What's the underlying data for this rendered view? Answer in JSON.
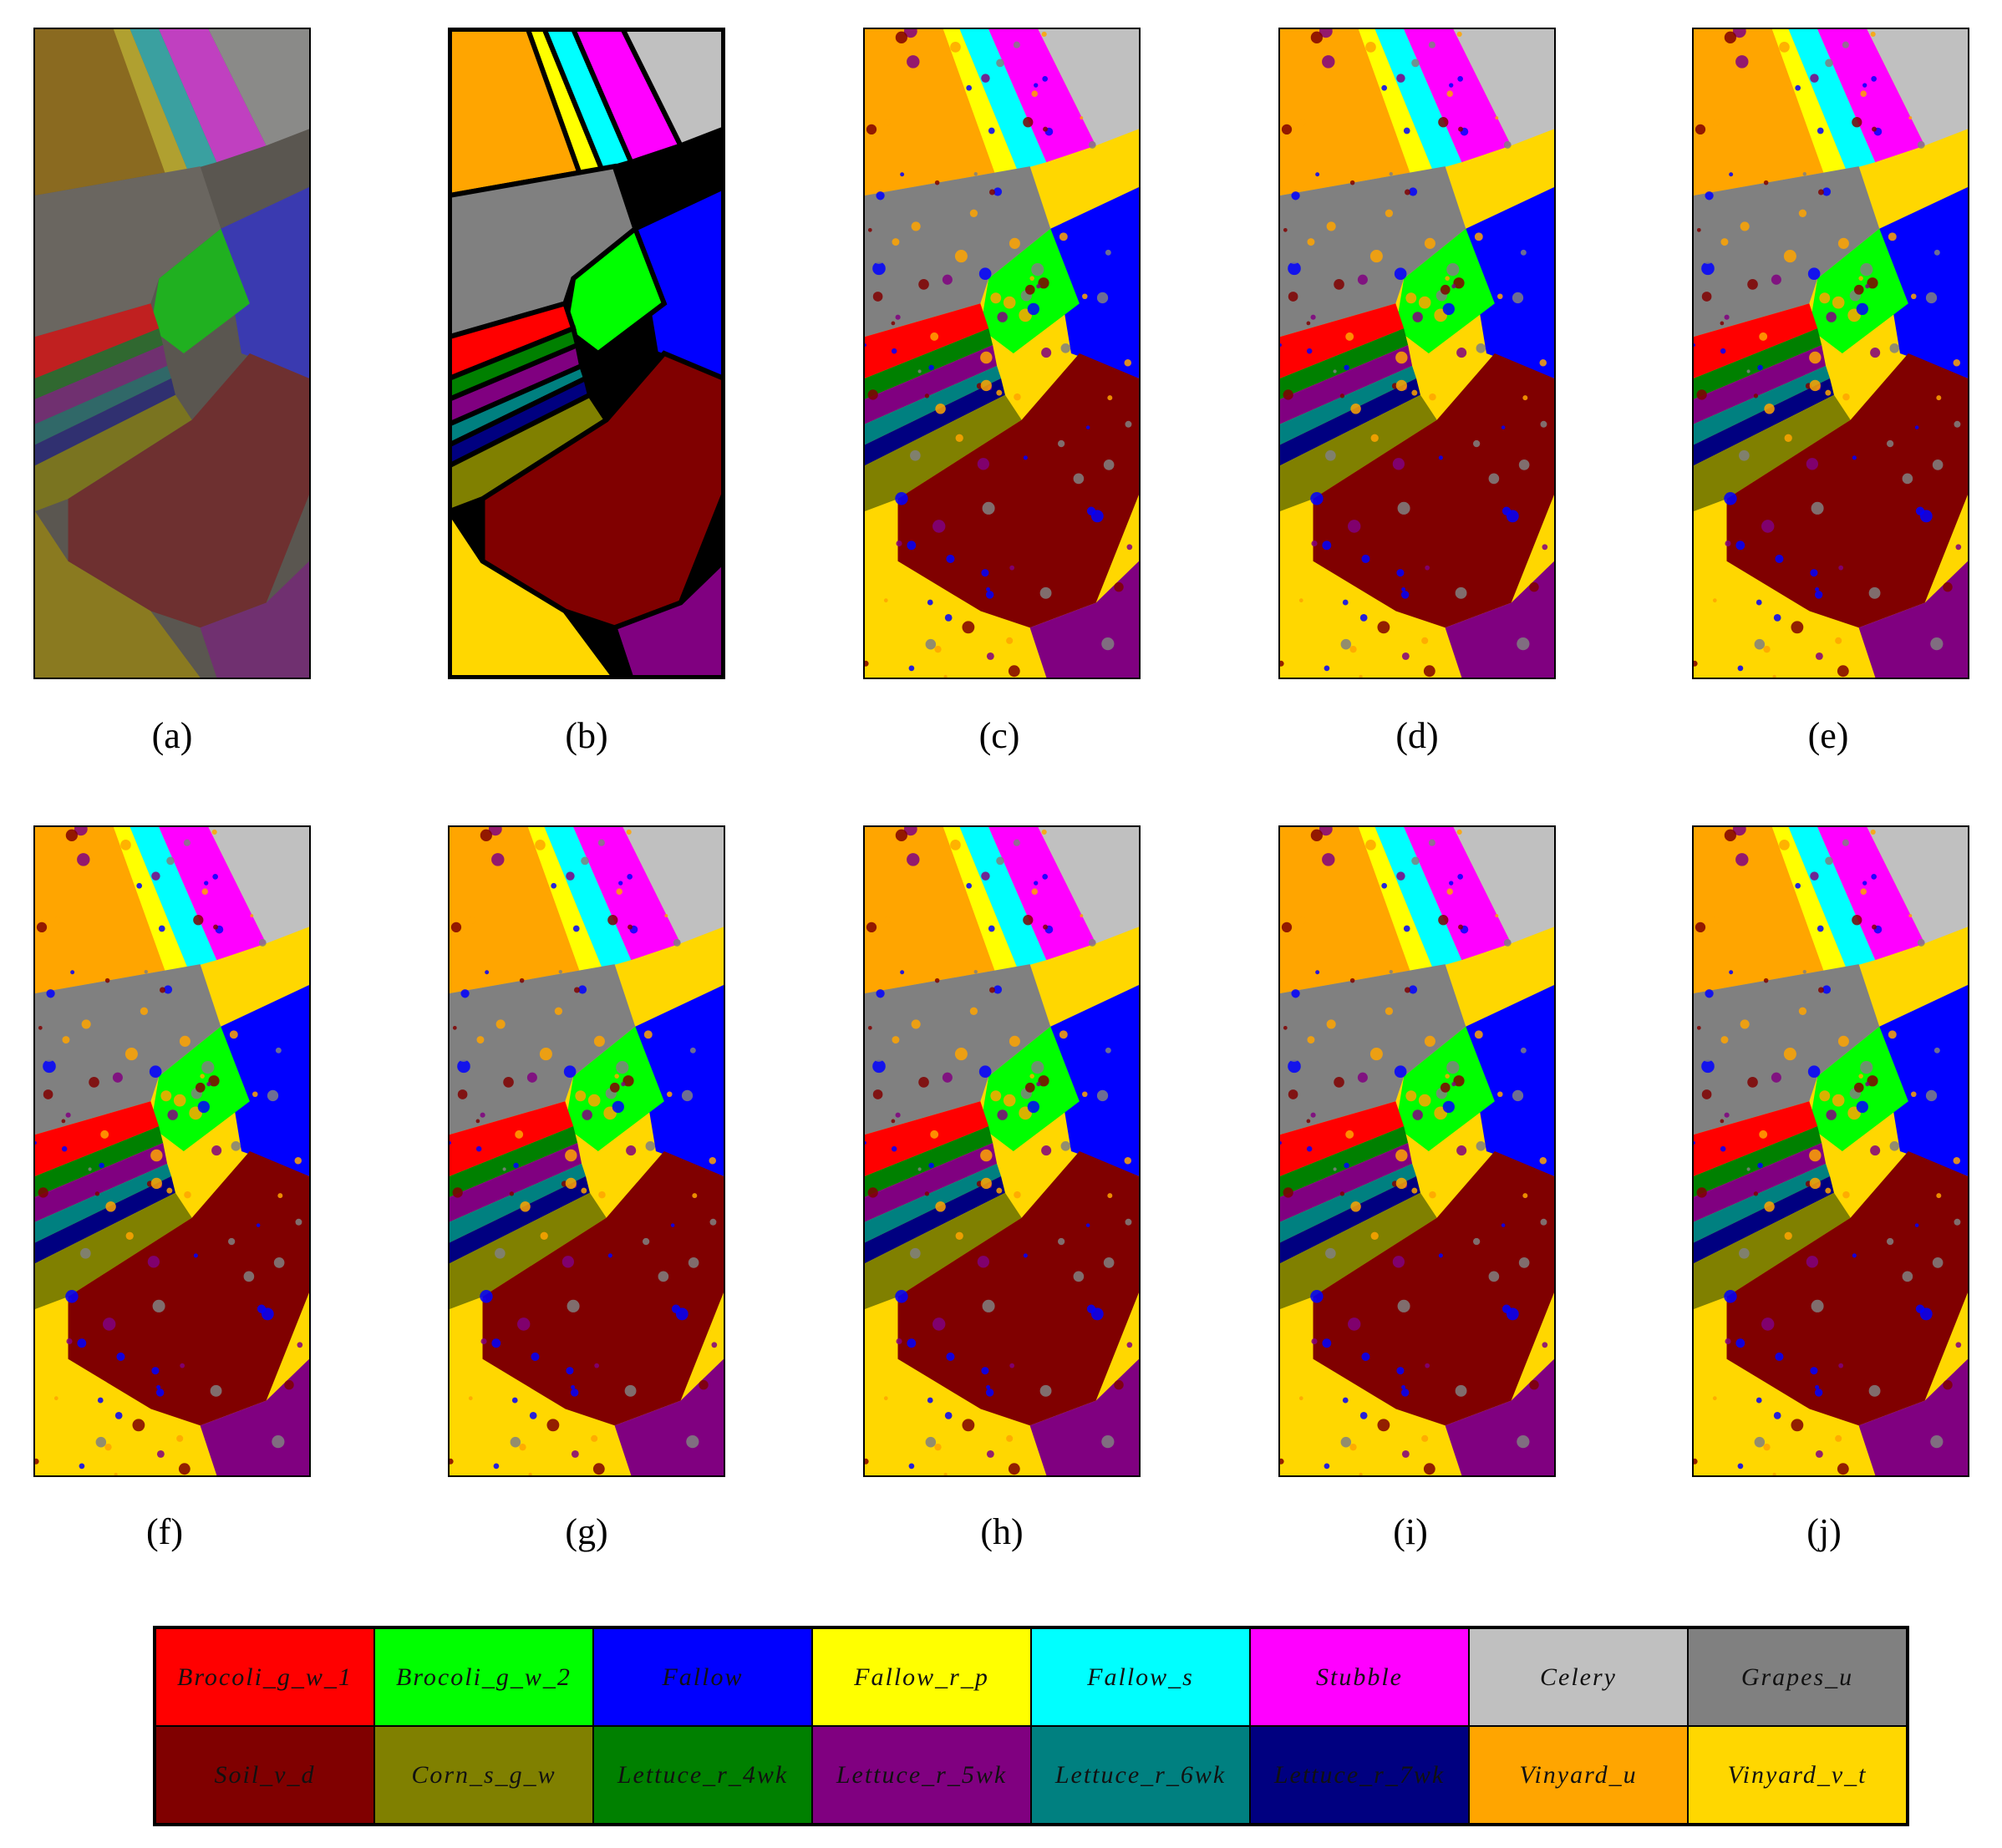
{
  "panels": [
    {
      "label": "(a)",
      "kind": "rgb"
    },
    {
      "label": "(b)",
      "kind": "groundtruth"
    },
    {
      "label": "(c)",
      "kind": "classmap"
    },
    {
      "label": "(d)",
      "kind": "classmap"
    },
    {
      "label": "(e)",
      "kind": "classmap"
    },
    {
      "label": "(f)",
      "kind": "classmap"
    },
    {
      "label": "(g)",
      "kind": "classmap"
    },
    {
      "label": "(h)",
      "kind": "classmap"
    },
    {
      "label": "(i)",
      "kind": "classmap"
    },
    {
      "label": "(j)",
      "kind": "classmap"
    }
  ],
  "legend": [
    {
      "name": "Brocoli_g_w_1",
      "color": "#ff0000"
    },
    {
      "name": "Brocoli_g_w_2",
      "color": "#00ff00"
    },
    {
      "name": "Fallow",
      "color": "#0000ff"
    },
    {
      "name": "Fallow_r_p",
      "color": "#ffff00"
    },
    {
      "name": "Fallow_s",
      "color": "#00ffff"
    },
    {
      "name": "Stubble",
      "color": "#ff00ff"
    },
    {
      "name": "Celery",
      "color": "#c0c0c0"
    },
    {
      "name": "Grapes_u",
      "color": "#808080"
    },
    {
      "name": "Soil_v_d",
      "color": "#800000"
    },
    {
      "name": "Corn_s_g_w",
      "color": "#808000"
    },
    {
      "name": "Lettuce_r_4wk",
      "color": "#008000"
    },
    {
      "name": "Lettuce_r_5wk",
      "color": "#800080"
    },
    {
      "name": "Lettuce_r_6wk",
      "color": "#008080"
    },
    {
      "name": "Lettuce_r_7wk",
      "color": "#000080"
    },
    {
      "name": "Vinyard_u",
      "color": "#ffa500"
    },
    {
      "name": "Vinyard_v_t",
      "color": "#ffd700"
    }
  ]
}
